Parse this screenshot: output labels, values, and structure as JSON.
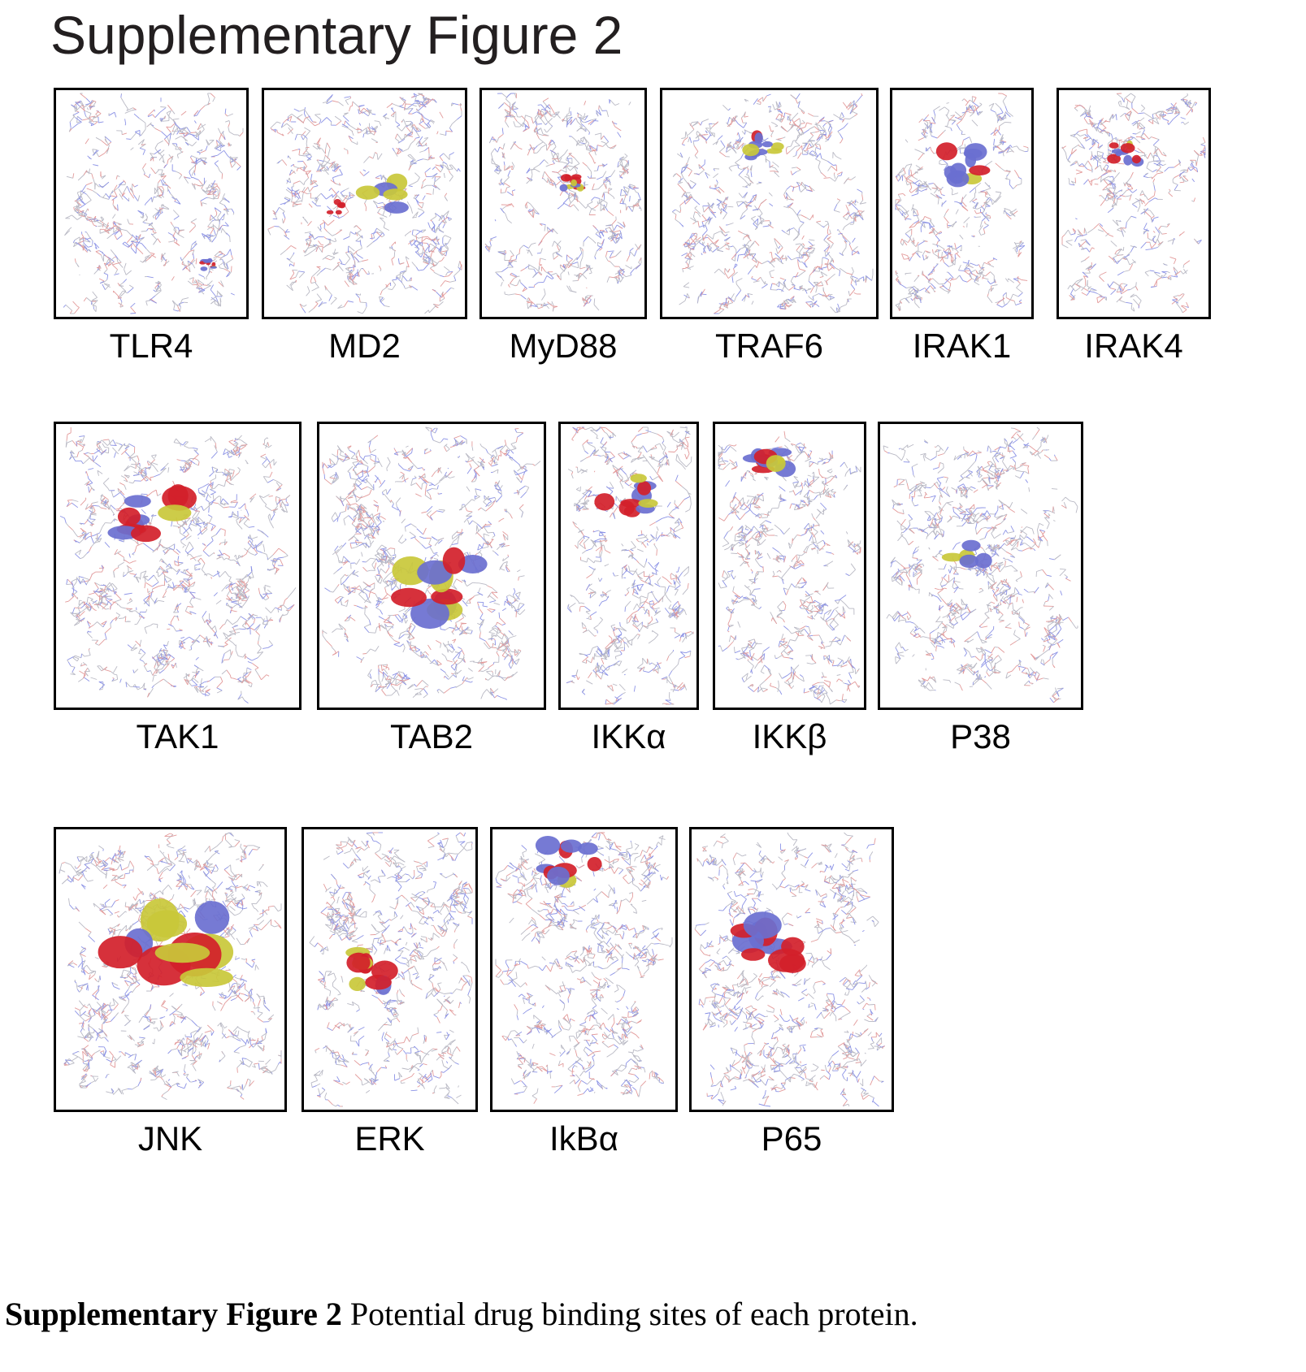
{
  "figure": {
    "title": "Supplementary Figure 2",
    "caption_bold": "Supplementary Figure 2",
    "caption_text": " Potential drug binding sites of each protein."
  },
  "colors": {
    "blue_surface": "#6a6fd0",
    "red_surface": "#d21f2a",
    "yellow_surface": "#c9c83a",
    "stick_gray": "#b9b9c4",
    "stick_blue": "#8c93e6",
    "stick_red": "#e39a9a"
  },
  "panels": [
    {
      "label": "TLR4"
    },
    {
      "label": "MD2"
    },
    {
      "label": "MyD88"
    },
    {
      "label": "TRAF6"
    },
    {
      "label": "IRAK1"
    },
    {
      "label": "IRAK4"
    },
    {
      "label": "TAK1"
    },
    {
      "label": "TAB2"
    },
    {
      "label": "IKKα"
    },
    {
      "label": "IKKβ"
    },
    {
      "label": "P38"
    },
    {
      "label": "JNK"
    },
    {
      "label": "ERK"
    },
    {
      "label": "IkBα"
    },
    {
      "label": "P65"
    }
  ]
}
